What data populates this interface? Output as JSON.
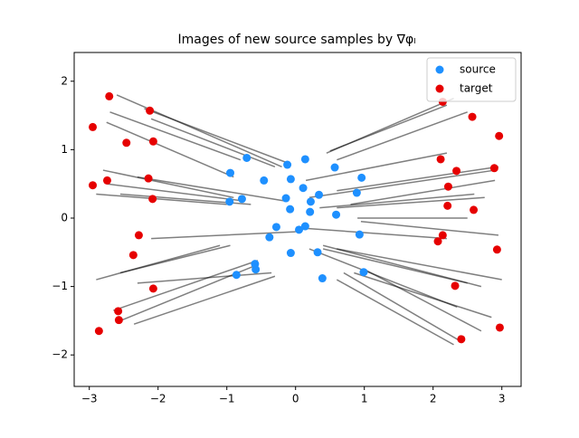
{
  "chart_data": {
    "type": "scatter",
    "title": "Images of new source samples by ∇φₗ",
    "xlim": [
      -3.22,
      3.28
    ],
    "ylim": [
      -2.46,
      2.42
    ],
    "xticks": [
      {
        "value": -3,
        "label": "−3"
      },
      {
        "value": -2,
        "label": "−2"
      },
      {
        "value": -1,
        "label": "−1"
      },
      0,
      1,
      2,
      3
    ],
    "yticks": [
      {
        "value": -2,
        "label": "−2"
      },
      {
        "value": -1,
        "label": "−1"
      },
      0,
      1,
      2
    ],
    "legend": "upper right",
    "segment_color": "#000000",
    "segments": [
      {
        "x": [
          -2.6,
          -0.2
        ],
        "y": [
          1.8,
          0.75
        ]
      },
      {
        "x": [
          -2.2,
          -0.1
        ],
        "y": [
          1.6,
          0.8
        ]
      },
      {
        "x": [
          -2.7,
          -0.8
        ],
        "y": [
          1.55,
          0.85
        ]
      },
      {
        "x": [
          -2.75,
          -0.9
        ],
        "y": [
          1.4,
          0.6
        ]
      },
      {
        "x": [
          -2.1,
          -0.3
        ],
        "y": [
          1.45,
          0.75
        ]
      },
      {
        "x": [
          -2.8,
          -0.9
        ],
        "y": [
          0.7,
          0.3
        ]
      },
      {
        "x": [
          -2.3,
          -0.15
        ],
        "y": [
          0.6,
          0.25
        ]
      },
      {
        "x": [
          -2.75,
          -0.75
        ],
        "y": [
          0.5,
          0.25
        ]
      },
      {
        "x": [
          -2.55,
          -0.65
        ],
        "y": [
          0.35,
          0.2
        ]
      },
      {
        "x": [
          -2.9,
          -1.0
        ],
        "y": [
          0.35,
          0.2
        ]
      },
      {
        "x": [
          0.45,
          2.3
        ],
        "y": [
          0.95,
          1.75
        ]
      },
      {
        "x": [
          0.5,
          2.2
        ],
        "y": [
          0.98,
          1.65
        ]
      },
      {
        "x": [
          0.6,
          2.5
        ],
        "y": [
          0.85,
          1.55
        ]
      },
      {
        "x": [
          0.15,
          2.2
        ],
        "y": [
          0.55,
          0.95
        ]
      },
      {
        "x": [
          0.6,
          2.95
        ],
        "y": [
          0.4,
          0.75
        ]
      },
      {
        "x": [
          0.2,
          2.9
        ],
        "y": [
          0.3,
          0.7
        ]
      },
      {
        "x": [
          0.8,
          2.9
        ],
        "y": [
          0.2,
          0.55
        ]
      },
      {
        "x": [
          0.35,
          2.6
        ],
        "y": [
          0.15,
          0.35
        ]
      },
      {
        "x": [
          0.6,
          2.75
        ],
        "y": [
          0.15,
          0.3
        ]
      },
      {
        "x": [
          0.9,
          2.5
        ],
        "y": [
          0.0,
          0.0
        ]
      },
      {
        "x": [
          -2.1,
          0.0
        ],
        "y": [
          -0.3,
          -0.2
        ]
      },
      {
        "x": [
          -2.55,
          -0.95
        ],
        "y": [
          -0.8,
          -0.4
        ]
      },
      {
        "x": [
          -2.3,
          -0.35
        ],
        "y": [
          -0.95,
          -0.8
        ]
      },
      {
        "x": [
          -2.65,
          -0.55
        ],
        "y": [
          -1.35,
          -0.62
        ]
      },
      {
        "x": [
          -2.55,
          -0.6
        ],
        "y": [
          -1.5,
          -0.7
        ]
      },
      {
        "x": [
          -2.35,
          -0.3
        ],
        "y": [
          -1.55,
          -0.85
        ]
      },
      {
        "x": [
          -2.9,
          -1.1
        ],
        "y": [
          -0.9,
          -0.4
        ]
      },
      {
        "x": [
          0.15,
          2.2
        ],
        "y": [
          -0.15,
          -0.3
        ]
      },
      {
        "x": [
          0.95,
          2.95
        ],
        "y": [
          -0.05,
          -0.25
        ]
      },
      {
        "x": [
          0.4,
          2.7
        ],
        "y": [
          -0.4,
          -1.0
        ]
      },
      {
        "x": [
          0.4,
          2.5
        ],
        "y": [
          -0.45,
          -0.95
        ]
      },
      {
        "x": [
          0.6,
          3.0
        ],
        "y": [
          -0.45,
          -0.9
        ]
      },
      {
        "x": [
          0.2,
          2.35
        ],
        "y": [
          -0.45,
          -1.3
        ]
      },
      {
        "x": [
          1.0,
          2.7
        ],
        "y": [
          -0.75,
          -1.65
        ]
      },
      {
        "x": [
          0.7,
          2.4
        ],
        "y": [
          -0.8,
          -1.8
        ]
      },
      {
        "x": [
          0.6,
          2.3
        ],
        "y": [
          -0.9,
          -1.85
        ]
      },
      {
        "x": [
          0.85,
          2.85
        ],
        "y": [
          -0.8,
          -1.45
        ]
      }
    ],
    "series": [
      {
        "name": "source",
        "color": "#1e90ff",
        "x": [
          -0.12,
          0.14,
          -0.71,
          -0.95,
          -0.46,
          0.57,
          0.96,
          -0.07,
          0.11,
          0.34,
          0.89,
          -0.14,
          0.22,
          -0.78,
          -0.96,
          -0.08,
          0.21,
          0.59,
          -0.28,
          0.14,
          0.05,
          -0.38,
          0.93,
          0.32,
          -0.07,
          -0.59,
          -0.58,
          -0.86,
          0.39,
          0.99
        ],
        "y": [
          0.78,
          0.86,
          0.88,
          0.66,
          0.55,
          0.74,
          0.59,
          0.57,
          0.44,
          0.34,
          0.37,
          0.29,
          0.24,
          0.28,
          0.24,
          0.13,
          0.09,
          0.05,
          -0.13,
          -0.12,
          -0.17,
          -0.28,
          -0.24,
          -0.5,
          -0.51,
          -0.67,
          -0.75,
          -0.83,
          -0.88,
          -0.79
        ]
      },
      {
        "name": "target",
        "color": "#e60000",
        "x": [
          -2.71,
          -2.12,
          -2.95,
          -2.46,
          -2.07,
          -2.74,
          -2.95,
          -2.14,
          -2.08,
          -2.28,
          -2.36,
          -2.07,
          -2.58,
          -2.57,
          -2.86,
          2.14,
          2.57,
          2.96,
          2.11,
          2.34,
          2.89,
          2.22,
          2.21,
          2.59,
          2.14,
          2.07,
          2.93,
          2.32,
          2.41,
          2.97
        ],
        "y": [
          1.78,
          1.57,
          1.33,
          1.1,
          1.12,
          0.55,
          0.48,
          0.58,
          0.28,
          -0.25,
          -0.54,
          -1.03,
          -1.36,
          -1.49,
          -1.65,
          1.7,
          1.48,
          1.2,
          0.86,
          0.69,
          0.73,
          0.46,
          0.18,
          0.12,
          -0.25,
          -0.34,
          -0.46,
          -0.99,
          -1.77,
          -1.6
        ]
      }
    ]
  }
}
